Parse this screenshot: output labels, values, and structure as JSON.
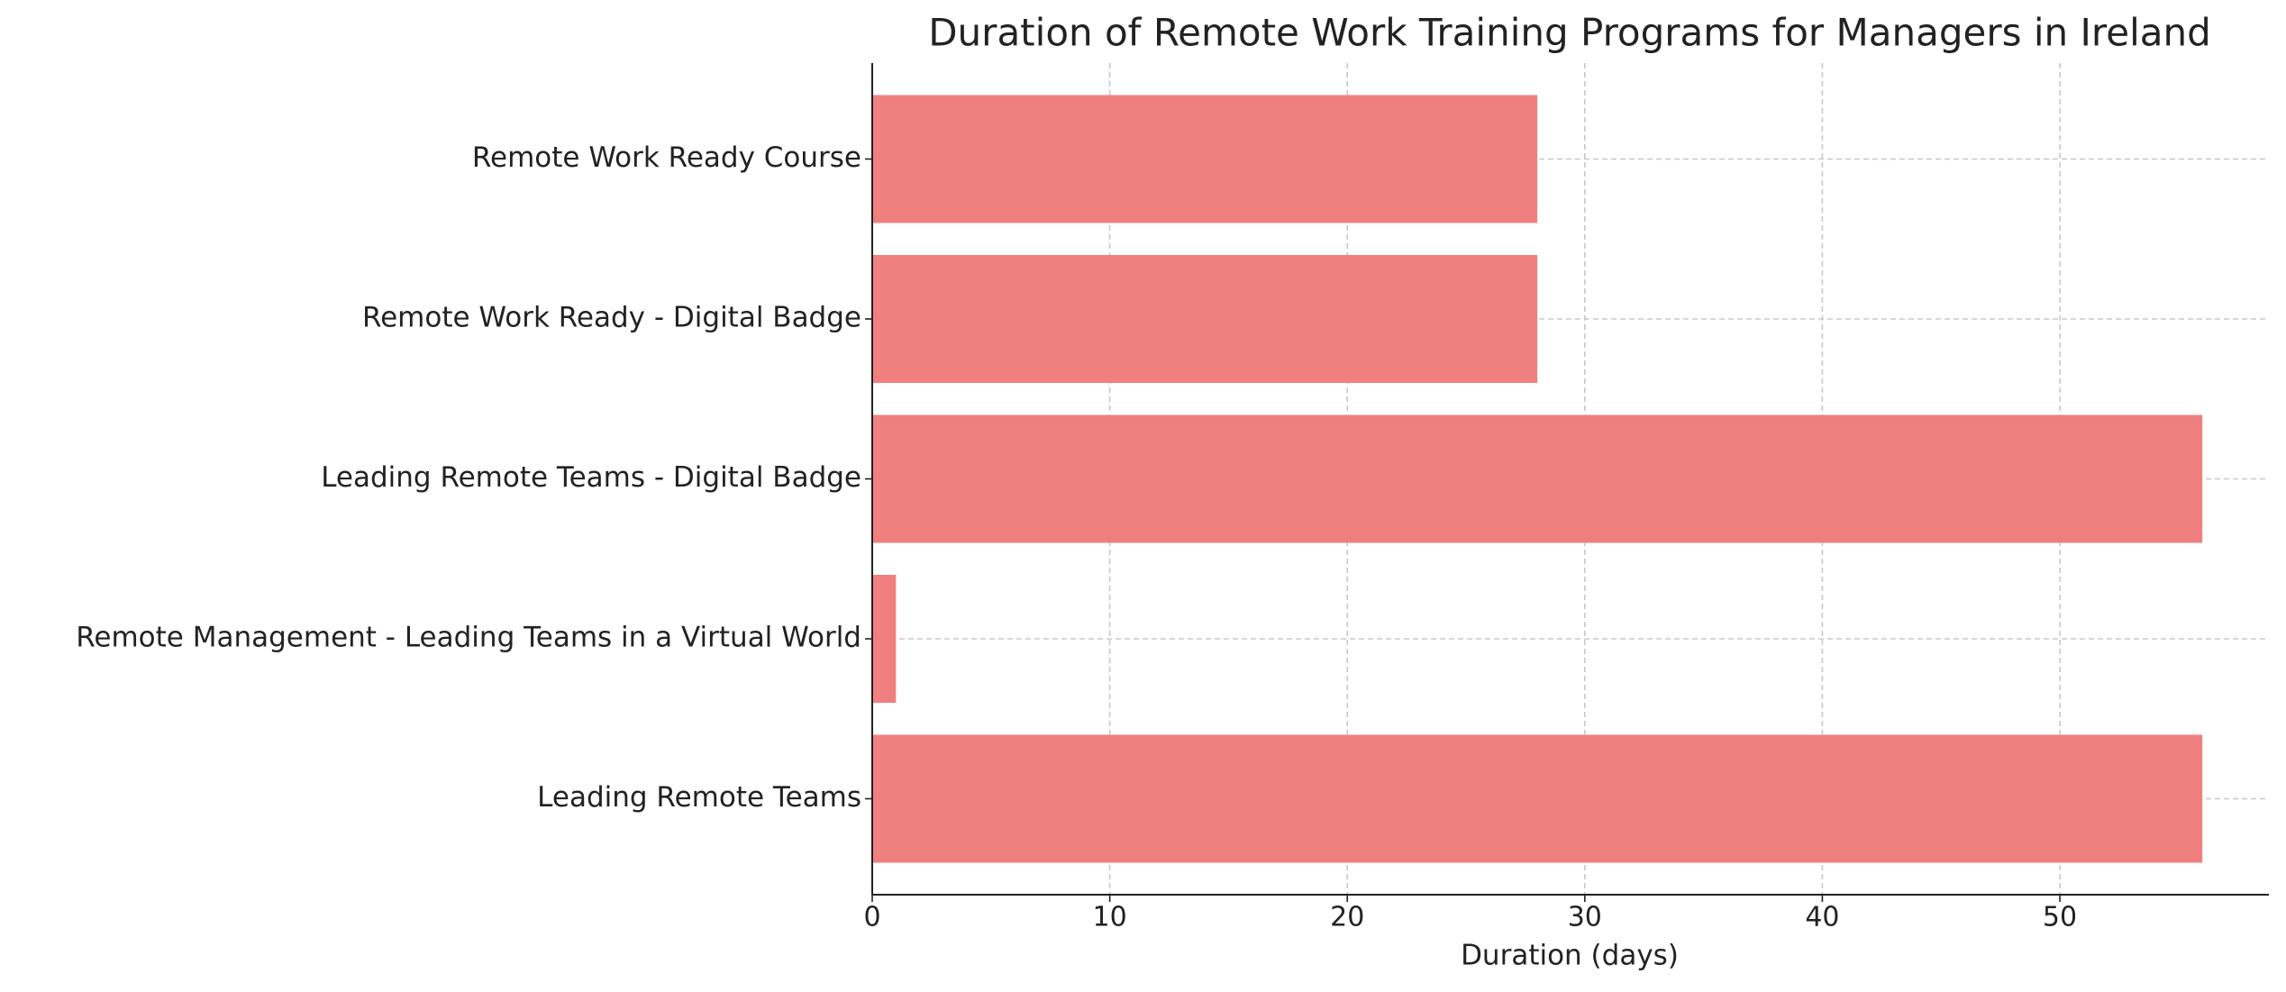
{
  "chart_data": {
    "type": "barh",
    "title": "Duration of Remote Work Training Programs for Managers in Ireland",
    "x_label": "Duration (days)",
    "categories": [
      "Leading Remote Teams",
      "Remote Management - Leading Teams in a Virtual World",
      "Leading Remote Teams - Digital Badge",
      "Remote Work Ready - Digital Badge",
      "Remote Work Ready Course"
    ],
    "values": [
      56,
      1,
      56,
      28,
      28
    ],
    "color": "#f08080",
    "xlim": [
      0,
      58.8
    ],
    "xticks": [
      0,
      10,
      20,
      30,
      40,
      50
    ],
    "grid": true
  }
}
